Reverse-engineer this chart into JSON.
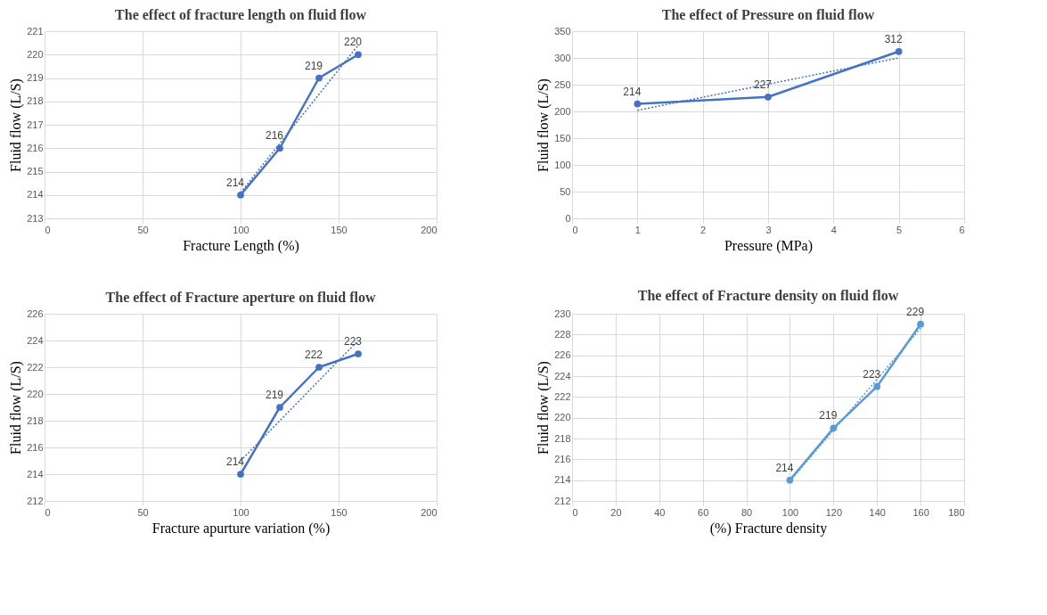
{
  "chart_data": [
    {
      "type": "line",
      "title": "The effect of fracture length on fluid flow",
      "xlabel": "Fracture Length (%)",
      "ylabel": "Fluid flow (L/S)",
      "x": [
        100,
        120,
        140,
        160
      ],
      "xlim": [
        0,
        200
      ],
      "xticks": [
        0,
        50,
        100,
        150,
        200
      ],
      "ylim": [
        213,
        221
      ],
      "yticks": [
        213,
        214,
        215,
        216,
        217,
        218,
        219,
        220,
        221
      ],
      "grid": true,
      "marker": "circle",
      "series": [
        {
          "color": "#4472c4",
          "values": [
            214,
            216,
            219,
            220
          ],
          "value_labels": [
            "214",
            "216",
            "219",
            "220"
          ]
        },
        {
          "type": "line",
          "line_style": "dotted",
          "marker": "none",
          "color": "#4472c4",
          "x": [
            100,
            160
          ],
          "values": [
            214.1,
            220.4
          ]
        }
      ]
    },
    {
      "type": "line",
      "title": "The effect of Pressure on fluid flow",
      "xlabel": "Pressure (MPa)",
      "ylabel": "Fluid flow (L/S)",
      "x": [
        1,
        3,
        5
      ],
      "xlim": [
        0,
        6
      ],
      "xticks": [
        0,
        1,
        2,
        3,
        4,
        5,
        6
      ],
      "ylim": [
        0,
        350
      ],
      "yticks": [
        0,
        50,
        100,
        150,
        200,
        250,
        300,
        350
      ],
      "grid": true,
      "marker": "circle",
      "series": [
        {
          "color": "#4472c4",
          "values": [
            214,
            227,
            312
          ],
          "value_labels": [
            "214",
            "227",
            "312"
          ]
        },
        {
          "type": "line",
          "line_style": "dotted",
          "marker": "none",
          "color": "#4472c4",
          "x": [
            1,
            5
          ],
          "values": [
            202,
            300
          ]
        }
      ]
    },
    {
      "type": "line",
      "title": "The effect of Fracture aperture on fluid flow",
      "xlabel": "Fracture apurture variation (%)",
      "ylabel": "Fluid flow (L/S)",
      "x": [
        100,
        120,
        140,
        160
      ],
      "xlim": [
        0,
        200
      ],
      "xticks": [
        0,
        50,
        100,
        150,
        200
      ],
      "ylim": [
        212,
        226
      ],
      "yticks": [
        212,
        214,
        216,
        218,
        220,
        222,
        224,
        226
      ],
      "grid": true,
      "marker": "circle",
      "series": [
        {
          "color": "#4472c4",
          "values": [
            214,
            219,
            222,
            223
          ],
          "value_labels": [
            "214",
            "219",
            "222",
            "223"
          ]
        },
        {
          "type": "line",
          "line_style": "dotted",
          "marker": "none",
          "color": "#4472c4",
          "x": [
            100,
            160
          ],
          "values": [
            215,
            224
          ]
        }
      ]
    },
    {
      "type": "line",
      "title": "The effect of Fracture density on fluid flow",
      "xlabel": "(%) Fracture density",
      "ylabel": "Fluid flow (L/S)",
      "x": [
        100,
        120,
        140,
        160
      ],
      "xlim": [
        0,
        180
      ],
      "xticks": [
        0,
        20,
        40,
        60,
        80,
        100,
        120,
        140,
        160,
        180
      ],
      "ylim": [
        212,
        230
      ],
      "yticks": [
        212,
        214,
        216,
        218,
        220,
        222,
        224,
        226,
        228,
        230
      ],
      "grid": true,
      "marker": "circle",
      "series": [
        {
          "color": "#5b9bd5",
          "values": [
            214,
            219,
            223,
            229
          ],
          "value_labels": [
            "214",
            "219",
            "223",
            "229"
          ]
        },
        {
          "type": "line",
          "line_style": "dotted",
          "marker": "none",
          "color": "#5b9bd5",
          "x": [
            100,
            160
          ],
          "values": [
            213.9,
            228.6
          ]
        }
      ]
    }
  ]
}
